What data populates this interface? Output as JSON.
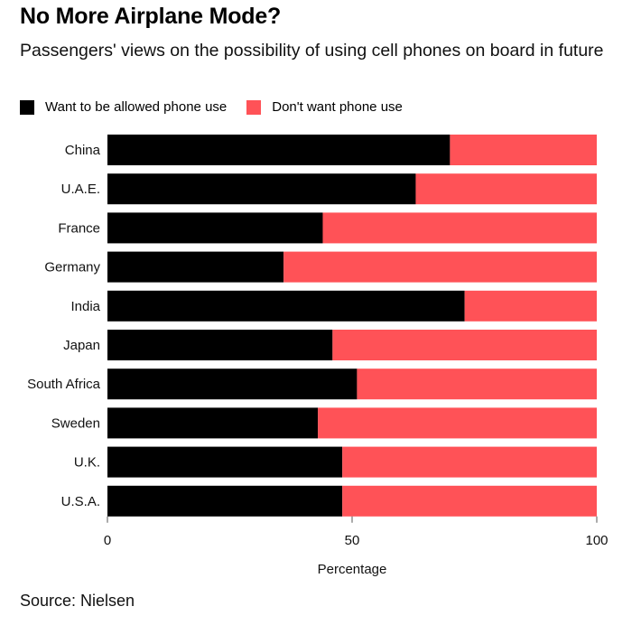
{
  "chart_data": {
    "type": "bar",
    "orientation": "horizontal",
    "stacked": true,
    "title": "No More Airplane Mode?",
    "subtitle": "Passengers' views on the possibility of using cell phones on board in future",
    "xlabel": "Percentage",
    "xlim": [
      0,
      100
    ],
    "xticks": [
      0,
      50,
      100
    ],
    "grid": false,
    "legend_position": "top-left",
    "categories": [
      "China",
      "U.A.E.",
      "France",
      "Germany",
      "India",
      "Japan",
      "South Africa",
      "Sweden",
      "U.K.",
      "U.S.A."
    ],
    "series": [
      {
        "name": "Want to be allowed phone use",
        "color": "#000000",
        "values": [
          70,
          63,
          44,
          36,
          73,
          46,
          51,
          43,
          48,
          48
        ]
      },
      {
        "name": "Don't want phone use",
        "color": "#ff5257",
        "values": [
          30,
          37,
          56,
          64,
          27,
          54,
          49,
          57,
          52,
          52
        ]
      }
    ],
    "source": "Source: Nielsen"
  }
}
